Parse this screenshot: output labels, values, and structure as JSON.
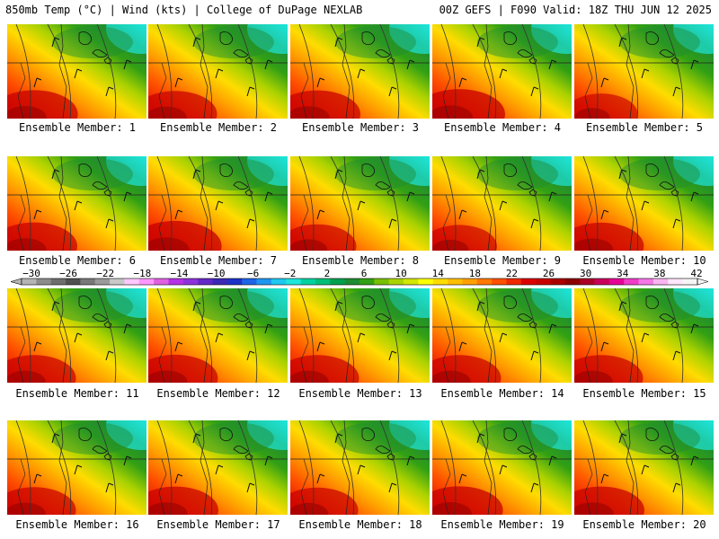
{
  "header": {
    "left": "850mb Temp (°C) | Wind (kts) | College of DuPage NEXLAB",
    "right": "00Z GEFS | F090 Valid: 18Z THU JUN 12 2025"
  },
  "members": [
    {
      "label": "Ensemble Member: 1",
      "warmth": 0.62
    },
    {
      "label": "Ensemble Member: 2",
      "warmth": 0.55
    },
    {
      "label": "Ensemble Member: 3",
      "warmth": 0.6
    },
    {
      "label": "Ensemble Member: 4",
      "warmth": 0.7
    },
    {
      "label": "Ensemble Member: 5",
      "warmth": 0.35
    },
    {
      "label": "Ensemble Member: 6",
      "warmth": 0.6
    },
    {
      "label": "Ensemble Member: 7",
      "warmth": 0.72
    },
    {
      "label": "Ensemble Member: 8",
      "warmth": 0.45
    },
    {
      "label": "Ensemble Member: 9",
      "warmth": 0.4
    },
    {
      "label": "Ensemble Member: 10",
      "warmth": 0.58
    },
    {
      "label": "Ensemble Member: 11",
      "warmth": 0.55
    },
    {
      "label": "Ensemble Member: 12",
      "warmth": 0.58
    },
    {
      "label": "Ensemble Member: 13",
      "warmth": 0.55
    },
    {
      "label": "Ensemble Member: 14",
      "warmth": 0.55
    },
    {
      "label": "Ensemble Member: 15",
      "warmth": 0.55
    },
    {
      "label": "Ensemble Member: 16",
      "warmth": 0.55
    },
    {
      "label": "Ensemble Member: 17",
      "warmth": 0.6
    },
    {
      "label": "Ensemble Member: 18",
      "warmth": 0.52
    },
    {
      "label": "Ensemble Member: 19",
      "warmth": 0.62
    },
    {
      "label": "Ensemble Member: 20",
      "warmth": 0.6
    }
  ],
  "colorbar": {
    "tick_labels": [
      "-30",
      "-26",
      "-22",
      "-18",
      "-14",
      "-10",
      "-6",
      "-2",
      "2",
      "6",
      "10",
      "14",
      "18",
      "22",
      "26",
      "30",
      "34",
      "38",
      "42"
    ],
    "colors": [
      "#b4b4b4",
      "#8c8c8c",
      "#6e6e6e",
      "#505050",
      "#787878",
      "#9a9a9a",
      "#c8c8c8",
      "#ffc8ff",
      "#ff96ff",
      "#e060e0",
      "#b432e6",
      "#8c32dc",
      "#6428c8",
      "#3c28b4",
      "#1e32c8",
      "#1e64e6",
      "#1e96f0",
      "#1ec8f0",
      "#1ee6dc",
      "#00d2a0",
      "#00be78",
      "#00a050",
      "#1e8c32",
      "#32a014",
      "#78be00",
      "#aad200",
      "#d2e600",
      "#ffff00",
      "#ffdc00",
      "#ffbe00",
      "#ffa000",
      "#ff7800",
      "#ff5000",
      "#f02800",
      "#dc0000",
      "#c80000",
      "#aa0000",
      "#8c0000",
      "#aa0028",
      "#c8005a",
      "#e60096",
      "#f03cc8",
      "#f578e6",
      "#fab4f0",
      "#ffe6fa",
      "#f5f5f5"
    ]
  }
}
